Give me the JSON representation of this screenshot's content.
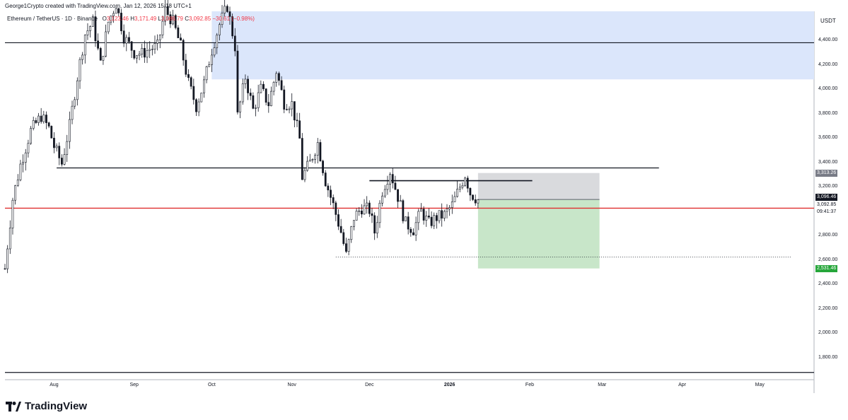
{
  "header": {
    "attribution": "George1Crypto created with TradingView.com, Jan 12, 2026 15:18 UTC+1"
  },
  "legend": {
    "symbol": "Ethereum / TetherUS · 1D · Binance",
    "open_label": "O",
    "open": "3,123.46",
    "high_label": "H",
    "high": "3,171.49",
    "low_label": "L",
    "low": "3,086.79",
    "close_label": "C",
    "close": "3,092.85",
    "change": "−30.61 (−0.98%)"
  },
  "axis": {
    "unit": "USDT",
    "y_ticks": [
      "4,400.00",
      "4,200.00",
      "4,000.00",
      "3,800.00",
      "3,600.00",
      "3,400.00",
      "3,200.00",
      "3,000.00",
      "2,800.00",
      "2,600.00",
      "2,400.00",
      "2,200.00",
      "2,000.00",
      "1,800.00"
    ],
    "x_ticks": [
      {
        "label": "Aug",
        "bold": false
      },
      {
        "label": "Sep",
        "bold": false
      },
      {
        "label": "Oct",
        "bold": false
      },
      {
        "label": "Nov",
        "bold": false
      },
      {
        "label": "Dec",
        "bold": false
      },
      {
        "label": "2026",
        "bold": true
      },
      {
        "label": "Feb",
        "bold": false
      },
      {
        "label": "Mar",
        "bold": false
      },
      {
        "label": "Apr",
        "bold": false
      },
      {
        "label": "May",
        "bold": false
      }
    ]
  },
  "badges": {
    "stop": {
      "value": "3,313.26",
      "bg": "#787b86",
      "fg": "#ffffff"
    },
    "entry": {
      "value": "3,096.46",
      "bg": "#131722",
      "fg": "#ffffff"
    },
    "price": {
      "value": "3,092.85",
      "bg": "#ffffff",
      "fg": "#131722"
    },
    "countdown": {
      "value": "09:41:37",
      "bg": "#ffffff",
      "fg": "#131722"
    },
    "target": {
      "value": "2,531.46",
      "bg": "#26a63a",
      "fg": "#ffffff"
    }
  },
  "brand": {
    "name": "TradingView"
  },
  "colors": {
    "candle": "#131722",
    "red_line": "#e03030",
    "supply_zone": "#dbe6fb",
    "stop_zone": "#d9dadd",
    "target_zone": "#c8e6c9",
    "grid_line": "#131722"
  },
  "chart_data": {
    "type": "candlestick",
    "ylim": [
      1640,
      4590
    ],
    "x_range": [
      "2025-07-13",
      "2026-05-22"
    ],
    "levels": [
      {
        "name": "top horizontal",
        "price": 4380
      },
      {
        "name": "bottom horizontal",
        "price": 1680
      },
      {
        "name": "support/resistance",
        "price": 3355,
        "from": "2025-08-02",
        "to": "2026-03-23"
      },
      {
        "name": "local high line",
        "price": 3250,
        "from": "2025-12-01",
        "to": "2026-02-02"
      },
      {
        "name": "red level",
        "price": 3025
      },
      {
        "name": "dotted low",
        "price": 2625,
        "from": "2025-11-18",
        "to": "2026-05-13"
      }
    ],
    "supply_zone": {
      "from": "2025-10-01",
      "price_low": 4080,
      "price_high": 4590
    },
    "position": {
      "type": "short",
      "from": "2026-01-12",
      "to": "2026-02-28",
      "entry": 3096.46,
      "stop": 3313.26,
      "target": 2531.46
    },
    "ohlc_points": [
      [
        "2025-07-13",
        2530
      ],
      [
        "2025-07-16",
        3100
      ],
      [
        "2025-07-19",
        3380
      ],
      [
        "2025-07-23",
        3660
      ],
      [
        "2025-07-27",
        3780
      ],
      [
        "2025-07-30",
        3680
      ],
      [
        "2025-08-01",
        3530
      ],
      [
        "2025-08-04",
        3390
      ],
      [
        "2025-08-07",
        3700
      ],
      [
        "2025-08-10",
        4100
      ],
      [
        "2025-08-13",
        4450
      ],
      [
        "2025-08-16",
        4550
      ],
      [
        "2025-08-19",
        4200
      ],
      [
        "2025-08-22",
        4550
      ],
      [
        "2025-08-25",
        4700
      ],
      [
        "2025-08-28",
        4430
      ],
      [
        "2025-09-01",
        4300
      ],
      [
        "2025-09-04",
        4290
      ],
      [
        "2025-09-07",
        4330
      ],
      [
        "2025-09-10",
        4350
      ],
      [
        "2025-09-13",
        4650
      ],
      [
        "2025-09-16",
        4550
      ],
      [
        "2025-09-19",
        4350
      ],
      [
        "2025-09-22",
        4050
      ],
      [
        "2025-09-25",
        3860
      ],
      [
        "2025-09-28",
        4050
      ],
      [
        "2025-10-01",
        4320
      ],
      [
        "2025-10-04",
        4530
      ],
      [
        "2025-10-07",
        4680
      ],
      [
        "2025-10-10",
        4350
      ],
      [
        "2025-10-11",
        3780
      ],
      [
        "2025-10-14",
        4100
      ],
      [
        "2025-10-17",
        3830
      ],
      [
        "2025-10-20",
        4000
      ],
      [
        "2025-10-23",
        3880
      ],
      [
        "2025-10-26",
        4150
      ],
      [
        "2025-10-29",
        3890
      ],
      [
        "2025-11-01",
        3880
      ],
      [
        "2025-11-04",
        3590
      ],
      [
        "2025-11-05",
        3280
      ],
      [
        "2025-11-08",
        3400
      ],
      [
        "2025-11-11",
        3560
      ],
      [
        "2025-11-14",
        3250
      ],
      [
        "2025-11-17",
        3050
      ],
      [
        "2025-11-20",
        2830
      ],
      [
        "2025-11-22",
        2640
      ],
      [
        "2025-11-25",
        2950
      ],
      [
        "2025-11-28",
        3030
      ],
      [
        "2025-12-01",
        3010
      ],
      [
        "2025-12-03",
        2830
      ],
      [
        "2025-12-06",
        3170
      ],
      [
        "2025-12-09",
        3330
      ],
      [
        "2025-12-12",
        3120
      ],
      [
        "2025-12-15",
        2900
      ],
      [
        "2025-12-18",
        2850
      ],
      [
        "2025-12-21",
        3000
      ],
      [
        "2025-12-24",
        2900
      ],
      [
        "2025-12-27",
        2950
      ],
      [
        "2025-12-30",
        2970
      ],
      [
        "2026-01-02",
        3050
      ],
      [
        "2026-01-05",
        3200
      ],
      [
        "2026-01-07",
        3300
      ],
      [
        "2026-01-09",
        3150
      ],
      [
        "2026-01-12",
        3093
      ]
    ]
  }
}
